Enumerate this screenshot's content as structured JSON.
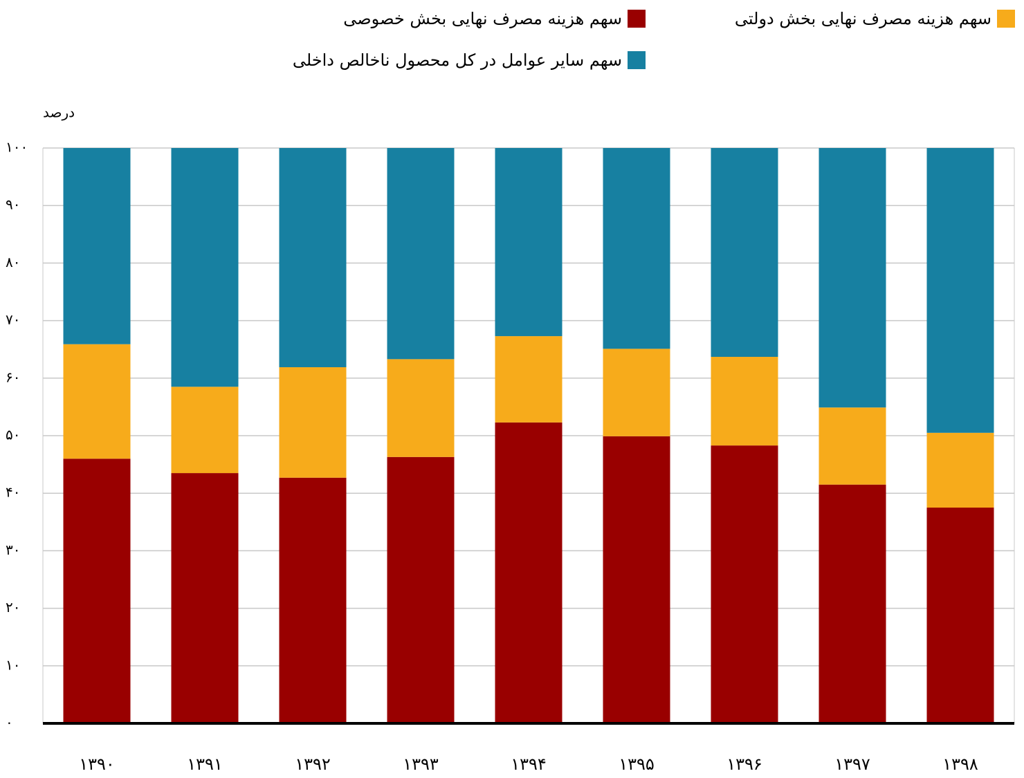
{
  "chart_data": {
    "type": "stacked_bar",
    "y_label": "درصد",
    "categories": [
      "۱۳۹۰",
      "۱۳۹۱",
      "۱۳۹۲",
      "۱۳۹۳",
      "۱۳۹۴",
      "۱۳۹۵",
      "۱۳۹۶",
      "۱۳۹۷",
      "۱۳۹۸"
    ],
    "series": [
      {
        "name": "سهم هزینه مصرف نهایی بخش خصوصی",
        "color": "#990000",
        "values": [
          46.0,
          43.5,
          42.7,
          46.3,
          52.3,
          49.9,
          48.3,
          41.5,
          37.5
        ]
      },
      {
        "name": "سهم هزینه مصرف نهایی بخش دولتی",
        "color": "#f7ab1b",
        "values": [
          19.9,
          15.0,
          19.2,
          17.0,
          15.0,
          15.2,
          15.4,
          13.4,
          13.0
        ]
      },
      {
        "name": "سهم سایر عوامل در کل محصول ناخالص داخلی",
        "color": "#1780a1",
        "values": [
          34.1,
          41.5,
          38.1,
          36.7,
          32.7,
          34.9,
          36.3,
          45.1,
          49.5
        ]
      }
    ],
    "ylim": [
      0,
      100
    ],
    "yticks": [
      {
        "value": 0,
        "label": "۰"
      },
      {
        "value": 10,
        "label": "۱۰"
      },
      {
        "value": 20,
        "label": "۲۰"
      },
      {
        "value": 30,
        "label": "۳۰"
      },
      {
        "value": 40,
        "label": "۴۰"
      },
      {
        "value": 50,
        "label": "۵۰"
      },
      {
        "value": 60,
        "label": "۶۰"
      },
      {
        "value": 70,
        "label": "۷۰"
      },
      {
        "value": 80,
        "label": "۸۰"
      },
      {
        "value": 90,
        "label": "۹۰"
      },
      {
        "value": 100,
        "label": "۱۰۰"
      }
    ],
    "grid": true
  }
}
